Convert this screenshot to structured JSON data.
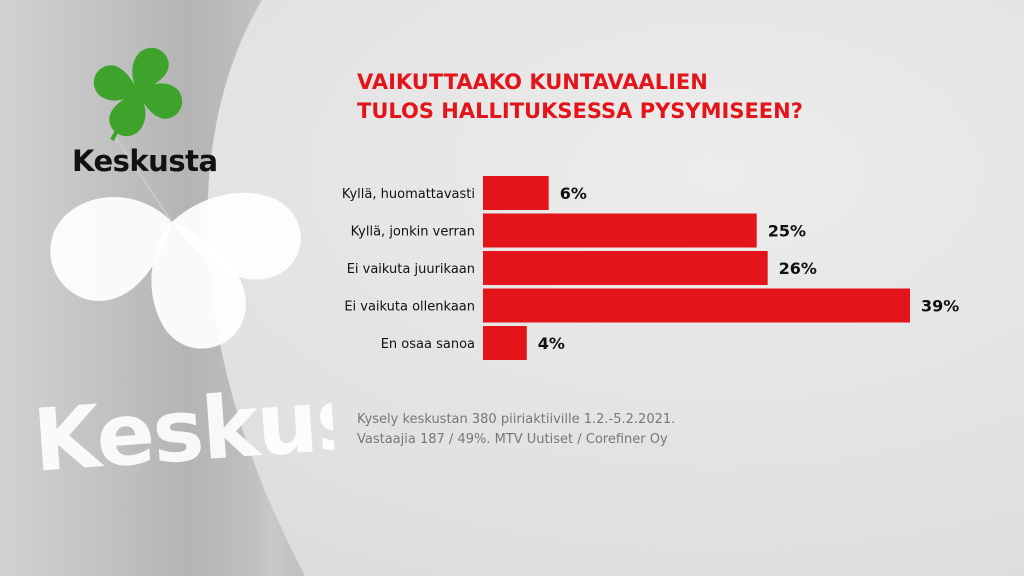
{
  "brand": {
    "logo_text": "Keskusta",
    "watermark_text": "Keskust",
    "logo_color": "#3ea32b",
    "accent_color": "#e3151b"
  },
  "title_lines": [
    "VAIKUTTAAKO KUNTAVAALIEN",
    "TULOS HALLITUKSESSA PYSYMISEEN?"
  ],
  "source_lines": [
    "Kysely keskustan 380 piiriaktiiville 1.2.-5.2.2021.",
    "Vastaajia 187 / 49%. MTV Uutiset / Corefiner Oy"
  ],
  "chart_data": {
    "type": "bar",
    "orientation": "horizontal",
    "categories": [
      "Kyllä, huomattavasti",
      "Kyllä, jonkin verran",
      "Ei vaikuta juurikaan",
      "Ei vaikuta ollenkaan",
      "En osaa sanoa"
    ],
    "values": [
      6,
      25,
      26,
      39,
      4
    ],
    "value_labels": [
      "6%",
      "25%",
      "26%",
      "39%",
      "4%"
    ],
    "bar_color": "#e3151b",
    "grid": false,
    "legend": "none",
    "xlim": [
      0,
      39
    ]
  }
}
